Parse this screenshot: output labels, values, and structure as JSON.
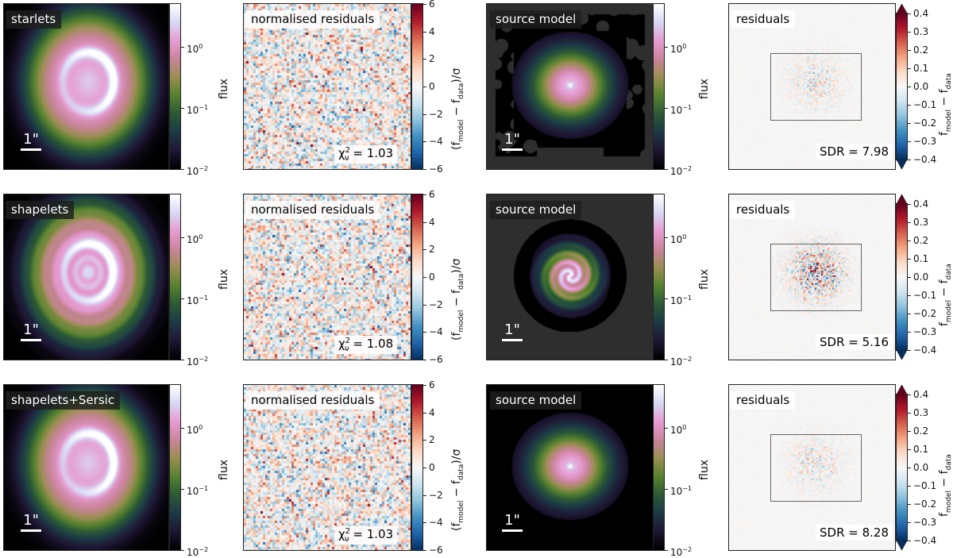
{
  "chart_data": {
    "type": "heatmap",
    "title": "",
    "rows": [
      {
        "method": "starlets",
        "scale_bar": "1\"",
        "residual_panel_title": "normalised residuals",
        "chi2_reduced": "1.03",
        "source_panel_title": "source model",
        "diff_panel_title": "residuals",
        "sdr": "7.98",
        "source_background": "masked-irregular-region"
      },
      {
        "method": "shapelets",
        "scale_bar": "1\"",
        "residual_panel_title": "normalised residuals",
        "chi2_reduced": "1.08",
        "source_panel_title": "source model",
        "diff_panel_title": "residuals",
        "sdr": "5.16",
        "source_background": "disc"
      },
      {
        "method": "shapelets+Sersic",
        "scale_bar": "1\"",
        "residual_panel_title": "normalised residuals",
        "chi2_reduced": "1.03",
        "source_panel_title": "source model",
        "diff_panel_title": "residuals",
        "sdr": "8.28",
        "source_background": "none"
      }
    ],
    "flux_colorbar": {
      "label": "flux",
      "scale": "log",
      "range": [
        0.01,
        5
      ],
      "ticks": [
        {
          "value": 0.01,
          "base": "10",
          "exp": "−2"
        },
        {
          "value": 0.1,
          "base": "10",
          "exp": "−1"
        },
        {
          "value": 1,
          "base": "10",
          "exp": "0"
        }
      ]
    },
    "norm_residual_colorbar": {
      "label_prefix": "(f",
      "label_sub1": "model",
      "label_mid": " − f",
      "label_sub2": "data",
      "label_suffix": ")/σ",
      "range": [
        -6,
        6
      ],
      "ticks": [
        "6",
        "4",
        "2",
        "0",
        "−2",
        "−4",
        "−6"
      ],
      "tick_values": [
        6,
        4,
        2,
        0,
        -2,
        -4,
        -6
      ]
    },
    "diff_colorbar": {
      "label_prefix": "f",
      "label_sub1": "model",
      "label_mid": " − f",
      "label_sub2": "data",
      "range": [
        -0.4,
        0.4
      ],
      "ticks": [
        "0.4",
        "0.3",
        "0.2",
        "0.1",
        "0.0",
        "−0.1",
        "−0.2",
        "−0.3",
        "−0.4"
      ],
      "tick_values": [
        0.4,
        0.3,
        0.2,
        0.1,
        0.0,
        -0.1,
        -0.2,
        -0.3,
        -0.4
      ],
      "extend": "both"
    },
    "chi2_prefix": "χ",
    "chi2_sup": "2",
    "chi2_sub": "ν",
    "chi2_eq": " = ",
    "sdr_prefix": "SDR = ",
    "colors": {
      "flux_cmap": [
        "#000000",
        "#1e1633",
        "#1c3a46",
        "#2c5a36",
        "#56822f",
        "#9a8e52",
        "#c9849a",
        "#e69cd2",
        "#d8d8f4",
        "#ffffff"
      ],
      "diverging_cmap": [
        "#053061",
        "#2166ac",
        "#4393c3",
        "#92c5de",
        "#d1e5f0",
        "#f7f7f7",
        "#fddbc7",
        "#f4a582",
        "#d6604d",
        "#b2182b",
        "#67001f"
      ],
      "source_backdrop": "#2e2e2e"
    }
  }
}
